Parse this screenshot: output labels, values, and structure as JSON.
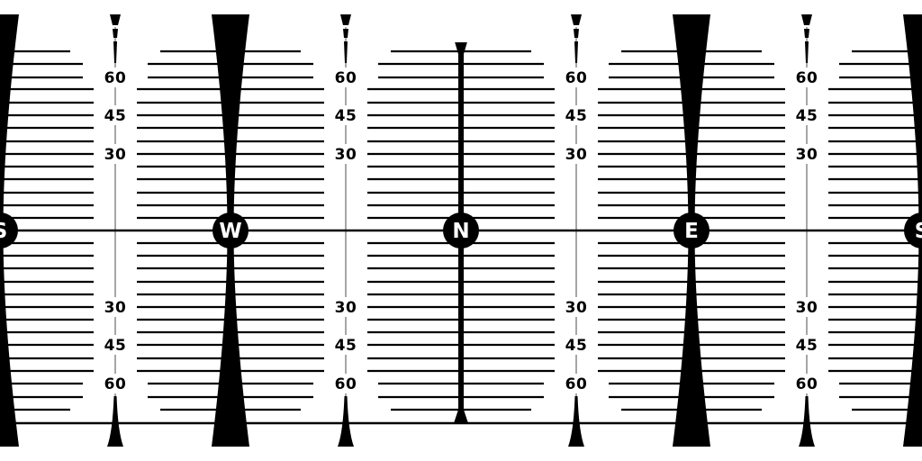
{
  "compass": {
    "points": [
      {
        "letter": "S",
        "azimuth": -180
      },
      {
        "letter": "W",
        "azimuth": -90
      },
      {
        "letter": "N",
        "azimuth": 0
      },
      {
        "letter": "E",
        "azimuth": 90
      },
      {
        "letter": "S",
        "azimuth": 180
      }
    ]
  },
  "latitude_labels": {
    "upper": [
      "60",
      "45",
      "30"
    ],
    "lower": [
      "30",
      "45",
      "60"
    ],
    "values": [
      60,
      45,
      30
    ]
  },
  "intermediate_azimuths": [
    -135,
    -45,
    45,
    135
  ],
  "colors": {
    "ink": "#000000",
    "paper": "#ffffff",
    "grid": "#6b6b6b"
  }
}
